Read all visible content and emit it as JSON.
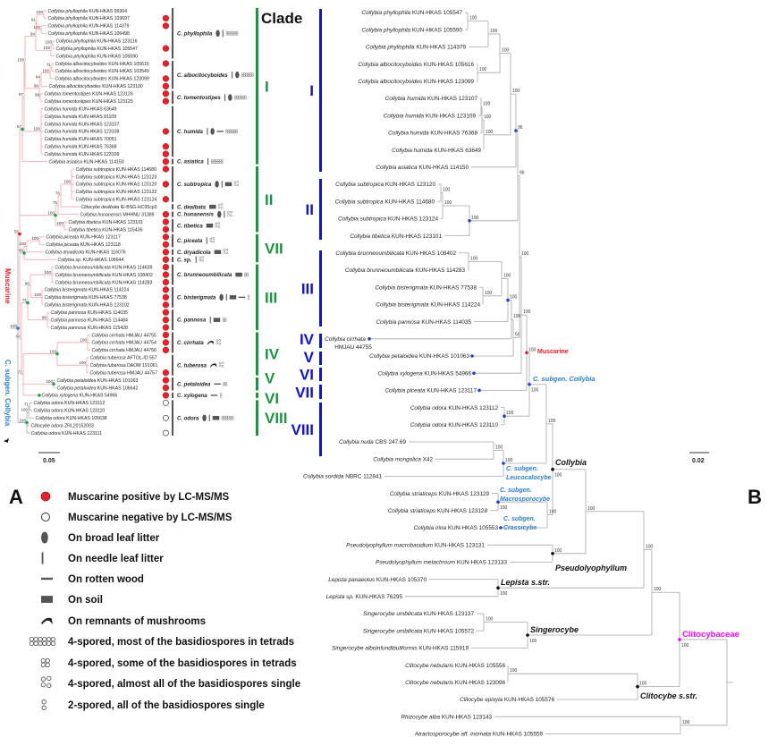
{
  "figure": {
    "panel_a": "A",
    "panel_b": "B",
    "clade_header": "Clade"
  },
  "left_tree": {
    "scale_bar": "0.05",
    "muscarine_label": "Muscarine",
    "subgenus_label": "C. subgen. Collybia",
    "tips": [
      {
        "name": "Collybia phyllophila",
        "voucher": "KUN-HKAS 99364",
        "lcms": ""
      },
      {
        "name": "Collybia phyllophila",
        "voucher": "KUN-HKAS 103697",
        "lcms": "positive"
      },
      {
        "name": "Collybia phyllophila",
        "voucher": "KUN-HKAS 114379",
        "lcms": "positive"
      },
      {
        "name": "Collybia phyllophila",
        "voucher": "KUN-HKAS 106498",
        "lcms": ""
      },
      {
        "name": "Collybia phyllophila",
        "voucher": "KUN-HKAS 123116",
        "lcms": ""
      },
      {
        "name": "Collybia phyllophila",
        "voucher": "KUN-HKAS 105547",
        "lcms": "positive"
      },
      {
        "name": "Collybia phyllophila",
        "voucher": "KUN-HKAS 105590",
        "lcms": ""
      },
      {
        "name": "Collybia albocitocyboides",
        "voucher": "KUN-HKAS 105616",
        "lcms": "positive"
      },
      {
        "name": "Collybia albocitocyboides",
        "voucher": "KUN-HKAS 103549",
        "lcms": ""
      },
      {
        "name": "Collybia albocitocyboides",
        "voucher": "KUN-HKAS 123099",
        "lcms": "positive"
      },
      {
        "name": "Collybia albocitocyboides",
        "voucher": "KUN-HKAS 123100",
        "lcms": "positive"
      },
      {
        "name": "Collybia tomentostipes",
        "voucher": "KUN-HKAS 123126",
        "lcms": "positive"
      },
      {
        "name": "Collybia tomentostipes",
        "voucher": "KUN-HKAS 123125",
        "lcms": "positive"
      },
      {
        "name": "Collybia humida",
        "voucher": "KUN-HKAS 63649",
        "lcms": ""
      },
      {
        "name": "Collybia humida",
        "voucher": "KUN-HKAS 81109",
        "lcms": ""
      },
      {
        "name": "Collybia humida",
        "voucher": "KUN-HKAS 123107",
        "lcms": ""
      },
      {
        "name": "Collybia humida",
        "voucher": "KUN-HKAS 123108",
        "lcms": "positive"
      },
      {
        "name": "Collybia humida",
        "voucher": "KUN-HKAS 70051",
        "lcms": ""
      },
      {
        "name": "Collybia humida",
        "voucher": "KUN-HKAS 76368",
        "lcms": "positive"
      },
      {
        "name": "Collybia humida",
        "voucher": "KUN-HKAS 123109",
        "lcms": "positive"
      },
      {
        "name": "Collybia asiatica",
        "voucher": "KUN-HKAS 114150",
        "lcms": "positive"
      },
      {
        "name": "Collybia subtropica",
        "voucher": "KUN-HKAS 114680",
        "lcms": "positive"
      },
      {
        "name": "Collybia subtropica",
        "voucher": "KUN-HKAS 123123",
        "lcms": ""
      },
      {
        "name": "Collybia subtropica",
        "voucher": "KUN-HKAS 123120",
        "lcms": "positive"
      },
      {
        "name": "Collybia subtropica",
        "voucher": "KUN-HKAS 123122",
        "lcms": ""
      },
      {
        "name": "Collybia subtropica",
        "voucher": "KUN-HKAS 123124",
        "lcms": "positive"
      },
      {
        "name": "Clitocybe dealbata",
        "voucher": "IE-BSG-HC95cp3",
        "lcms": ""
      },
      {
        "name": "Collybia hunanensis",
        "voucher": "MHHNU 31389",
        "lcms": "positive"
      },
      {
        "name": "Collybia tibetica",
        "voucher": "KUN-HKAS 123101",
        "lcms": "positive"
      },
      {
        "name": "Collybia tibetica",
        "voucher": "KUN-HKAS 115436",
        "lcms": "positive"
      },
      {
        "name": "Collybia piceata",
        "voucher": "KUN-HKAS 123117",
        "lcms": "positive"
      },
      {
        "name": "Collybia piceata",
        "voucher": "KUN-HKAS 123118",
        "lcms": "positive"
      },
      {
        "name": "Collybia dryadicola",
        "voucher": "KUN-HKAS 116076",
        "lcms": "positive"
      },
      {
        "name": "Collybia sp.",
        "voucher": "KUN-HKAS 106644",
        "lcms": "positive"
      },
      {
        "name": "Collybia brunneoumbilicata",
        "voucher": "KUN-HKAS 114639",
        "lcms": "positive"
      },
      {
        "name": "Collybia brunneoumbilicata",
        "voucher": "KUN-HKAS 108402",
        "lcms": "positive"
      },
      {
        "name": "Collybia brunneoumbilicata",
        "voucher": "KUN-HKAS 114283",
        "lcms": "positive"
      },
      {
        "name": "Collybia bisterigmata",
        "voucher": "KUN-HKAS 114224",
        "lcms": "positive"
      },
      {
        "name": "Collybia bisterigmata",
        "voucher": "KUN-HKAS 77538",
        "lcms": "positive"
      },
      {
        "name": "Collybia bisterigmata",
        "voucher": "KUN-HKAS 123102",
        "lcms": "positive"
      },
      {
        "name": "Collybia pannosa",
        "voucher": "KUN-HKAS 114035",
        "lcms": "positive"
      },
      {
        "name": "Collybia pannosa",
        "voucher": "KUN-HKAS 114484",
        "lcms": "positive"
      },
      {
        "name": "Collybia pannosa",
        "voucher": "KUN-HKAS 115428",
        "lcms": "positive"
      },
      {
        "name": "Collybia cirrhata",
        "voucher": "HMJAU 44755",
        "lcms": "positive"
      },
      {
        "name": "Collybia cirrhata",
        "voucher": "HMJAU 44754",
        "lcms": "positive"
      },
      {
        "name": "Collybia cirrhata",
        "voucher": "HMJAU 44756",
        "lcms": "positive"
      },
      {
        "name": "Collybia tuberosa",
        "voucher": "AFTOL-ID 557",
        "lcms": ""
      },
      {
        "name": "Collybia tuberosa",
        "voucher": "DAOM 191061",
        "lcms": ""
      },
      {
        "name": "Collybia tuberosa",
        "voucher": "HMJAU 44757",
        "lcms": "positive"
      },
      {
        "name": "Collybia petaloidea",
        "voucher": "KUN-HKAS 101063",
        "lcms": "positive"
      },
      {
        "name": "Collybia petaloidea",
        "voucher": "KUN-HKAS 106642",
        "lcms": "positive"
      },
      {
        "name": "Collybia xylogena",
        "voucher": "KUN-HKAS 54966",
        "lcms": "positive"
      },
      {
        "name": "Collybia odora",
        "voucher": "KUN-HKAS 123112",
        "lcms": "negative"
      },
      {
        "name": "Collybia odora",
        "voucher": "KUN-HKAS 123110",
        "lcms": ""
      },
      {
        "name": "Collybia odora",
        "voucher": "KUN-HKAS 105638",
        "lcms": "negative"
      },
      {
        "name": "Clitocybe odora",
        "voucher": "ZRL20152003",
        "lcms": ""
      },
      {
        "name": "Collybia odora",
        "voucher": "KUN-HKAS 123111",
        "lcms": "negative"
      }
    ],
    "supports": {
      "l1": "100",
      "l2": "100",
      "l3": "91",
      "l4": "100",
      "l5": "100",
      "l6": "94",
      "l7": "71",
      "l8": "100",
      "l9": "94",
      "l10": "99",
      "l11": "96",
      "l12": "100",
      "l13": "100",
      "l14": "97",
      "l15": "67",
      "l16": "100",
      "l17": "76",
      "l18": "75",
      "l19": "100",
      "l20": "100",
      "l21": "100",
      "l22": "100",
      "l23": "99",
      "l24": "100",
      "l25": "100",
      "l26": "98",
      "l27": "96",
      "l28": "75",
      "l29": "100",
      "l30": "100",
      "l31": "100",
      "l32": "100",
      "l33": "72",
      "l34": "94",
      "l35": "55",
      "l36": "71",
      "l37": "100",
      "l38": "100",
      "l39": "100"
    }
  },
  "species_groups": [
    {
      "label": "C. phyllophila",
      "first": 0,
      "last": 6,
      "ecology": [
        "broad-leaf-litter",
        "needle-leaf-litter"
      ],
      "spores": "tetrads-most"
    },
    {
      "label": "C. albocitocyboides",
      "first": 7,
      "last": 10,
      "ecology": [
        "needle-leaf-litter",
        "broad-leaf-litter"
      ],
      "spores": "tetrads-most"
    },
    {
      "label": "C. tomentostipes",
      "first": 11,
      "last": 12,
      "ecology": [
        "needle-leaf-litter",
        "broad-leaf-litter"
      ],
      "spores": "tetrads-most"
    },
    {
      "label": "C. humida",
      "first": 13,
      "last": 19,
      "ecology": [
        "needle-leaf-litter",
        "broad-leaf-litter",
        "rotten-wood"
      ],
      "spores": "tetrads-most"
    },
    {
      "label": "C. asiatica",
      "first": 20,
      "last": 20,
      "ecology": [
        "needle-leaf-litter"
      ],
      "spores": "tetrads-most"
    },
    {
      "label": "C. subtropica",
      "first": 21,
      "last": 25,
      "ecology": [
        "broad-leaf-litter",
        "needle-leaf-litter",
        "soil"
      ],
      "spores": "single-most"
    },
    {
      "label": "C. dealbata",
      "first": 26,
      "last": 26,
      "ecology": [
        "soil"
      ],
      "spores": "single-most"
    },
    {
      "label": "C. hunanensis",
      "first": 27,
      "last": 27,
      "ecology": [
        "broad-leaf-litter",
        "needle-leaf-litter"
      ],
      "spores": "single-most"
    },
    {
      "label": "C. tibetica",
      "first": 28,
      "last": 29,
      "ecology": [
        "soil"
      ],
      "spores": "single-most"
    },
    {
      "label": "C. piceata",
      "first": 30,
      "last": 31,
      "ecology": [
        "needle-leaf-litter"
      ],
      "spores": "single-most"
    },
    {
      "label": "C. dryadicola",
      "first": 32,
      "last": 32,
      "ecology": [
        "soil"
      ],
      "spores": "single-most"
    },
    {
      "label": "C. sp.",
      "first": 33,
      "last": 33,
      "ecology": [
        "needle-leaf-litter"
      ],
      "spores": "single-most"
    },
    {
      "label": "C. brunneoumbilicata",
      "first": 34,
      "last": 36,
      "ecology": [
        "soil"
      ],
      "spores": "tetrads-some"
    },
    {
      "label": "C. bisterigmata",
      "first": 37,
      "last": 39,
      "ecology": [
        "broad-leaf-litter",
        "needle-leaf-litter",
        "soil",
        "rotten-wood"
      ],
      "spores": "two-spored"
    },
    {
      "label": "C. pannosa",
      "first": 40,
      "last": 42,
      "ecology": [
        "needle-leaf-litter",
        "soil"
      ],
      "spores": "tetrads-some"
    },
    {
      "label": "C. cirrhata",
      "first": 43,
      "last": 45,
      "ecology": [
        "mushroom-remnants"
      ],
      "spores": "single-most"
    },
    {
      "label": "C. tuberosa",
      "first": 46,
      "last": 48,
      "ecology": [
        "mushroom-remnants"
      ],
      "spores": "single-most"
    },
    {
      "label": "C. petaloidea",
      "first": 49,
      "last": 50,
      "ecology": [
        "rotten-wood"
      ],
      "spores": "tetrads-some"
    },
    {
      "label": "C. xylogena",
      "first": 51,
      "last": 51,
      "ecology": [
        "rotten-wood"
      ],
      "spores": "two-spored"
    },
    {
      "label": "C. odora",
      "first": 52,
      "last": 56,
      "ecology": [
        "broad-leaf-litter",
        "needle-leaf-litter",
        "soil"
      ],
      "spores": "tetrads-most"
    }
  ],
  "clades_left": [
    {
      "label": "I",
      "first": 0,
      "last": 20
    },
    {
      "label": "II",
      "first": 21,
      "last": 29
    },
    {
      "label": "VII",
      "first": 30,
      "last": 33
    },
    {
      "label": "III",
      "first": 34,
      "last": 42
    },
    {
      "label": "IV",
      "first": 43,
      "last": 48
    },
    {
      "label": "V",
      "first": 49,
      "last": 50
    },
    {
      "label": "VI",
      "first": 51,
      "last": 51
    },
    {
      "label": "VIII",
      "first": 52,
      "last": 56
    }
  ],
  "clades_right": [
    {
      "label": "I"
    },
    {
      "label": "II"
    },
    {
      "label": "III"
    },
    {
      "label": "IV"
    },
    {
      "label": "V"
    },
    {
      "label": "VI"
    },
    {
      "label": "VII"
    },
    {
      "label": "VIII"
    }
  ],
  "colors": {
    "clade_left": "#1a9641",
    "clade_right": "#1010e0",
    "muscarine": "#ee1c25",
    "subgenus": "#2a7fd4",
    "family": "#ff00ff",
    "positive_dot": "#e8202a",
    "branch_muscarine": "#f5a3ab",
    "branch": "#a8a8a8"
  },
  "right_tree": {
    "scale_bar": "0.02",
    "tips": [
      {
        "name": "Collybia phyllophila",
        "voucher": "KUN-HKAS 105547"
      },
      {
        "name": "Collybia phyllophila",
        "voucher": "KUN-HKAS 105590"
      },
      {
        "name": "Collybia phyllophila",
        "voucher": "KUN-HKAS 114379"
      },
      {
        "name": "Collybia albocitocyboides",
        "voucher": "KUN-HKAS 105616"
      },
      {
        "name": "Collybia albocitocyboides",
        "voucher": "KUN-HKAS 123099"
      },
      {
        "name": "Collybia humida",
        "voucher": "KUN-HKAS 123107"
      },
      {
        "name": "Collybia humida",
        "voucher": "KUN-HKAS 123109"
      },
      {
        "name": "Collybia humida",
        "voucher": "KUN-HKAS 76368"
      },
      {
        "name": "Collybia humida",
        "voucher": "KUN-HKAS 63649"
      },
      {
        "name": "Collybia asiatica",
        "voucher": "KUN-HKAS 114150"
      },
      {
        "name": "Collybia subtropica",
        "voucher": "KUN-HKAS 123120"
      },
      {
        "name": "Collybia subtropica",
        "voucher": "KUN-HKAS 114680"
      },
      {
        "name": "Collybia subtropica",
        "voucher": "KUN-HKAS 123124"
      },
      {
        "name": "Collybia tibetica",
        "voucher": "KUN-HKAS 123101"
      },
      {
        "name": "Collybia brunneoumbilicata",
        "voucher": "KUN-HKAS 108402"
      },
      {
        "name": "Collybia brunneoumbilicata",
        "voucher": "KUN-HKAS 114283"
      },
      {
        "name": "Collybia bisterigmata",
        "voucher": "KUN-HKAS 77538"
      },
      {
        "name": "Collybia bisterigmata",
        "voucher": "KUN-HKAS 114224"
      },
      {
        "name": "Collybia pannosa",
        "voucher": "KUN-HKAS 114035"
      },
      {
        "name": "Collybia cirrhata",
        "voucher": "HMJAU 44755"
      },
      {
        "name": "Collybia petaloidea",
        "voucher": "KUN-HKAS 101063"
      },
      {
        "name": "Collybia xylogena",
        "voucher": "KUN-HKAS 54966"
      },
      {
        "name": "Collybia piceata",
        "voucher": "KUN-HKAS 123117"
      },
      {
        "name": "Collybia odora",
        "voucher": "KUN-HKAS 123112"
      },
      {
        "name": "Collybia odora",
        "voucher": "KUN-HKAS 123110"
      },
      {
        "name": "Collybia nuda",
        "voucher": "CBS 247.69"
      },
      {
        "name": "Collybia mongolica",
        "voucher": "X42"
      },
      {
        "name": "Collybia sordida",
        "voucher": "NBRC 112841"
      },
      {
        "name": "Collybia striaticeps",
        "voucher": "KUN-HKAS 123129"
      },
      {
        "name": "Collybia striaticeps",
        "voucher": "KUN-HKAS 123128"
      },
      {
        "name": "Collybia irina",
        "voucher": "KUN-HKAS 105553"
      },
      {
        "name": "Pseudolyophyllum macrobasidium",
        "voucher": "KUN-HKAS 123131"
      },
      {
        "name": "Pseudolyophyllum metachroum",
        "voucher": "KUN-HKAS 123133"
      },
      {
        "name": "Lepista panaeolus",
        "voucher": "KUN-HKAS 105370"
      },
      {
        "name": "Lepista sp.",
        "voucher": "KUN-HKAS 76295"
      },
      {
        "name": "Singerocybe umbilicata",
        "voucher": "KUN-HKAS 123137"
      },
      {
        "name": "Singerocybe umbilicata",
        "voucher": "KUN-HKAS 105572"
      },
      {
        "name": "Singerocybe alboinfundibuliformis",
        "voucher": "KUN-HKAS 115919"
      },
      {
        "name": "Clitocybe nebularis",
        "voucher": "KUN-HKAS 105556"
      },
      {
        "name": "Clitocybe nebularis",
        "voucher": "KUN-HKAS 123096"
      },
      {
        "name": "Clitocybe epixyla",
        "voucher": "KUN-HKAS 105576"
      },
      {
        "name": "Rhizocybe alba",
        "voucher": "KUN-HKAS 123143"
      },
      {
        "name": "Atractosporocybe aff. inornata",
        "voucher": "KUN-HKAS 105559"
      }
    ],
    "supports": {
      "r1": "100",
      "r2": "100",
      "r3": "100",
      "r4": "100",
      "r5": "100",
      "r6": "100",
      "r7": "100",
      "r8": "100",
      "r9": "96",
      "r10": "100",
      "r11": "100",
      "r12": "100",
      "r13": "100",
      "r14": "100",
      "r15": "100",
      "r16": "100",
      "r17": "100",
      "r18": "59",
      "r19": "96",
      "r20": "100",
      "r21": "100",
      "r22": "100",
      "r23": "100",
      "r24": "100",
      "r25": "100",
      "r26": "100",
      "r27": "100",
      "r28": "100",
      "r29": "100",
      "r30": "100",
      "r31": "100",
      "r32": "100",
      "r33": "100",
      "r34": "100",
      "r35": "100",
      "r36": "100",
      "r37": "100",
      "r38": "100",
      "r39": "100",
      "r40": "100",
      "r41": "100"
    },
    "clade_labels": {
      "muscarine": "Muscarine",
      "subgen_collybia": "C. subgen. Collybia",
      "leucocalocybe": [
        "C. subgen.",
        "Leucocalocybe"
      ],
      "macrosporocybe": [
        "C. subgen.",
        "Macrosporocybe"
      ],
      "crassicybe": [
        "C. subgen.",
        "Crassicybe"
      ],
      "collybia": "Collybia",
      "pseudolyophyllum": "Pseudolyophyllum",
      "lepista": "Lepista s.str.",
      "singerocybe": "Singerocybe",
      "clitocybe": "Clitocybe s.str.",
      "clitocybaceae": "Clitocybaceae"
    }
  },
  "legend": [
    {
      "icon": "red-dot",
      "text": "Muscarine positive by LC-MS/MS"
    },
    {
      "icon": "open-circle",
      "text": "Muscarine negative by LC-MS/MS"
    },
    {
      "icon": "broad-leaf-litter",
      "text": "On broad leaf litter"
    },
    {
      "icon": "needle-leaf-litter",
      "text": "On needle leaf litter"
    },
    {
      "icon": "rotten-wood",
      "text": "On rotten wood"
    },
    {
      "icon": "soil",
      "text": "On soil"
    },
    {
      "icon": "mushroom-remnants",
      "text": "On remnants of mushrooms"
    },
    {
      "icon": "tetrads-most",
      "text": "4-spored, most of the basidiospores in tetrads"
    },
    {
      "icon": "tetrads-some",
      "text": "4-spored, some of the basidiospores in tetrads"
    },
    {
      "icon": "single-most",
      "text": "4-spored, almost all of the basidiospores single"
    },
    {
      "icon": "two-spored",
      "text": "2-spored, all of the basidiospores single"
    }
  ]
}
